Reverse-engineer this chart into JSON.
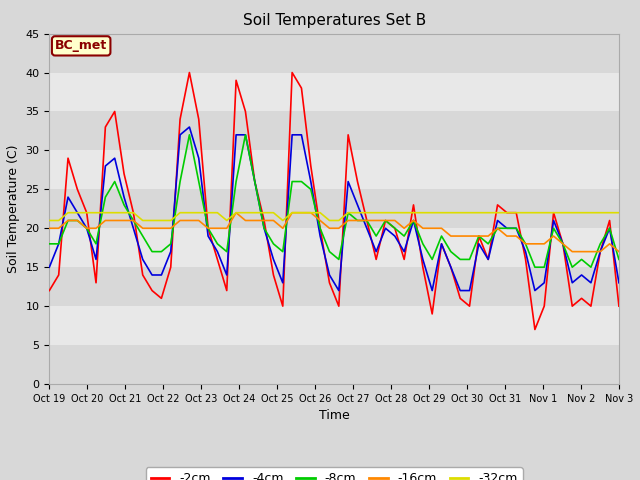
{
  "title": "Soil Temperatures Set B",
  "xlabel": "Time",
  "ylabel": "Soil Temperature (C)",
  "annotation": "BC_met",
  "legend_labels": [
    "-2cm",
    "-4cm",
    "-8cm",
    "-16cm",
    "-32cm"
  ],
  "legend_colors": [
    "#ff0000",
    "#0000dd",
    "#00cc00",
    "#ff8800",
    "#dddd00"
  ],
  "ylim": [
    0,
    45
  ],
  "yticks": [
    0,
    5,
    10,
    15,
    20,
    25,
    30,
    35,
    40,
    45
  ],
  "xtick_labels": [
    "Oct 19",
    "Oct 20",
    "Oct 21",
    "Oct 22",
    "Oct 23",
    "Oct 24",
    "Oct 25",
    "Oct 26",
    "Oct 27",
    "Oct 28",
    "Oct 29",
    "Oct 30",
    "Oct 31",
    "Nov 1",
    "Nov 2",
    "Nov 3"
  ],
  "fig_facecolor": "#d8d8d8",
  "axes_facecolor": "#e8e8e8",
  "band_colors": [
    "#d8d8d8",
    "#e8e8e8"
  ],
  "series": {
    "neg2cm": [
      12,
      14,
      29,
      25,
      22,
      13,
      33,
      35,
      27,
      22,
      14,
      12,
      11,
      15,
      34,
      40,
      34,
      20,
      16,
      12,
      39,
      35,
      26,
      21,
      14,
      10,
      40,
      38,
      28,
      20,
      13,
      10,
      32,
      26,
      21,
      16,
      21,
      20,
      16,
      23,
      15,
      9,
      18,
      15,
      11,
      10,
      19,
      16,
      23,
      22,
      22,
      16,
      7,
      10,
      22,
      18,
      10,
      11,
      10,
      17,
      21,
      10
    ],
    "neg4cm": [
      15,
      18,
      24,
      22,
      20,
      16,
      28,
      29,
      24,
      20,
      16,
      14,
      14,
      17,
      32,
      33,
      29,
      19,
      17,
      14,
      32,
      32,
      26,
      20,
      16,
      13,
      32,
      32,
      26,
      19,
      14,
      12,
      26,
      23,
      20,
      17,
      20,
      19,
      17,
      21,
      16,
      12,
      18,
      15,
      12,
      12,
      18,
      16,
      21,
      20,
      20,
      17,
      12,
      13,
      21,
      18,
      13,
      14,
      13,
      17,
      20,
      13
    ],
    "neg8cm": [
      18,
      18,
      21,
      21,
      20,
      18,
      24,
      26,
      23,
      21,
      19,
      17,
      17,
      18,
      26,
      32,
      26,
      20,
      18,
      17,
      26,
      32,
      26,
      20,
      18,
      17,
      26,
      26,
      25,
      20,
      17,
      16,
      22,
      21,
      21,
      19,
      21,
      20,
      19,
      21,
      18,
      16,
      19,
      17,
      16,
      16,
      19,
      18,
      20,
      20,
      20,
      18,
      15,
      15,
      20,
      18,
      15,
      16,
      15,
      18,
      20,
      16
    ],
    "neg16cm": [
      20,
      20,
      21,
      21,
      20,
      20,
      21,
      21,
      21,
      21,
      20,
      20,
      20,
      20,
      21,
      21,
      21,
      20,
      20,
      20,
      22,
      21,
      21,
      21,
      21,
      20,
      22,
      22,
      22,
      21,
      20,
      20,
      21,
      21,
      21,
      21,
      21,
      21,
      20,
      21,
      20,
      20,
      20,
      19,
      19,
      19,
      19,
      19,
      20,
      19,
      19,
      18,
      18,
      18,
      19,
      18,
      17,
      17,
      17,
      17,
      18,
      17
    ],
    "neg32cm": [
      21,
      21,
      22,
      22,
      22,
      22,
      22,
      22,
      22,
      22,
      21,
      21,
      21,
      21,
      22,
      22,
      22,
      22,
      22,
      21,
      22,
      22,
      22,
      22,
      22,
      21,
      22,
      22,
      22,
      22,
      21,
      21,
      22,
      22,
      22,
      22,
      22,
      22,
      22,
      22,
      22,
      22,
      22,
      22,
      22,
      22,
      22,
      22,
      22,
      22,
      22,
      22,
      22,
      22,
      22,
      22,
      22,
      22,
      22,
      22,
      22,
      22
    ]
  }
}
